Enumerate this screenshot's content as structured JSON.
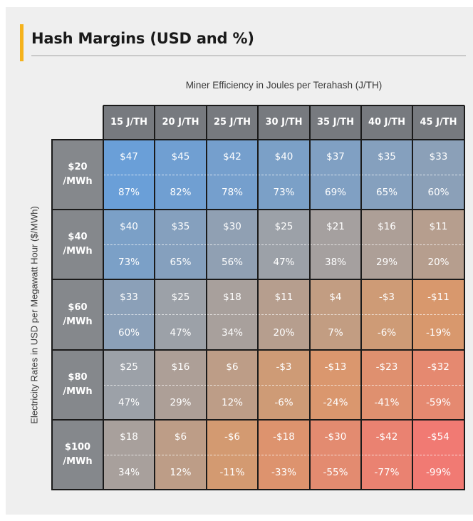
{
  "colors": {
    "accent": "#f5b21b",
    "header_bg": "#777a7f",
    "row_header_bg": "#85888c",
    "best": "#6a9fd8",
    "neutral": "#9ea1a6",
    "mid": "#d79a6d",
    "worst": "#f17a73"
  },
  "chart_data": {
    "type": "table",
    "title": "Hash Margins (USD and %)",
    "xlabel": "Miner Efficiency  in Joules per Terahash (J/TH)",
    "ylabel": "Electricity Rates in USD per Megawatt Hour ($/MWh)",
    "columns": [
      "15 J/TH",
      "20 J/TH",
      "25 J/TH",
      "30 J/TH",
      "35 J/TH",
      "40 J/TH",
      "45 J/TH"
    ],
    "rows": [
      {
        "label_line1": "$20",
        "label_line2": "/MWh",
        "usd": [
          "$47",
          "$45",
          "$42",
          "$40",
          "$37",
          "$35",
          "$33"
        ],
        "pct": [
          "87%",
          "82%",
          "78%",
          "73%",
          "69%",
          "65%",
          "60%"
        ],
        "pct_values": [
          87,
          82,
          78,
          73,
          69,
          65,
          60
        ]
      },
      {
        "label_line1": "$40",
        "label_line2": "/MWh",
        "usd": [
          "$40",
          "$35",
          "$30",
          "$25",
          "$21",
          "$16",
          "$11"
        ],
        "pct": [
          "73%",
          "65%",
          "56%",
          "47%",
          "38%",
          "29%",
          "20%"
        ],
        "pct_values": [
          73,
          65,
          56,
          47,
          38,
          29,
          20
        ]
      },
      {
        "label_line1": "$60",
        "label_line2": "/MWh",
        "usd": [
          "$33",
          "$25",
          "$18",
          "$11",
          "$4",
          "-$3",
          "-$11"
        ],
        "pct": [
          "60%",
          "47%",
          "34%",
          "20%",
          "7%",
          "-6%",
          "-19%"
        ],
        "pct_values": [
          60,
          47,
          34,
          20,
          7,
          -6,
          -19
        ]
      },
      {
        "label_line1": "$80",
        "label_line2": "/MWh",
        "usd": [
          "$25",
          "$16",
          "$6",
          "-$3",
          "-$13",
          "-$23",
          "-$32"
        ],
        "pct": [
          "47%",
          "29%",
          "12%",
          "-6%",
          "-24%",
          "-41%",
          "-59%"
        ],
        "pct_values": [
          47,
          29,
          12,
          -6,
          -24,
          -41,
          -59
        ]
      },
      {
        "label_line1": "$100",
        "label_line2": "/MWh",
        "usd": [
          "$18",
          "$6",
          "-$6",
          "-$18",
          "-$30",
          "-$42",
          "-$54"
        ],
        "pct": [
          "34%",
          "12%",
          "-11%",
          "-33%",
          "-55%",
          "-77%",
          "-99%"
        ],
        "pct_values": [
          34,
          12,
          -11,
          -33,
          -55,
          -77,
          -99
        ]
      }
    ]
  }
}
